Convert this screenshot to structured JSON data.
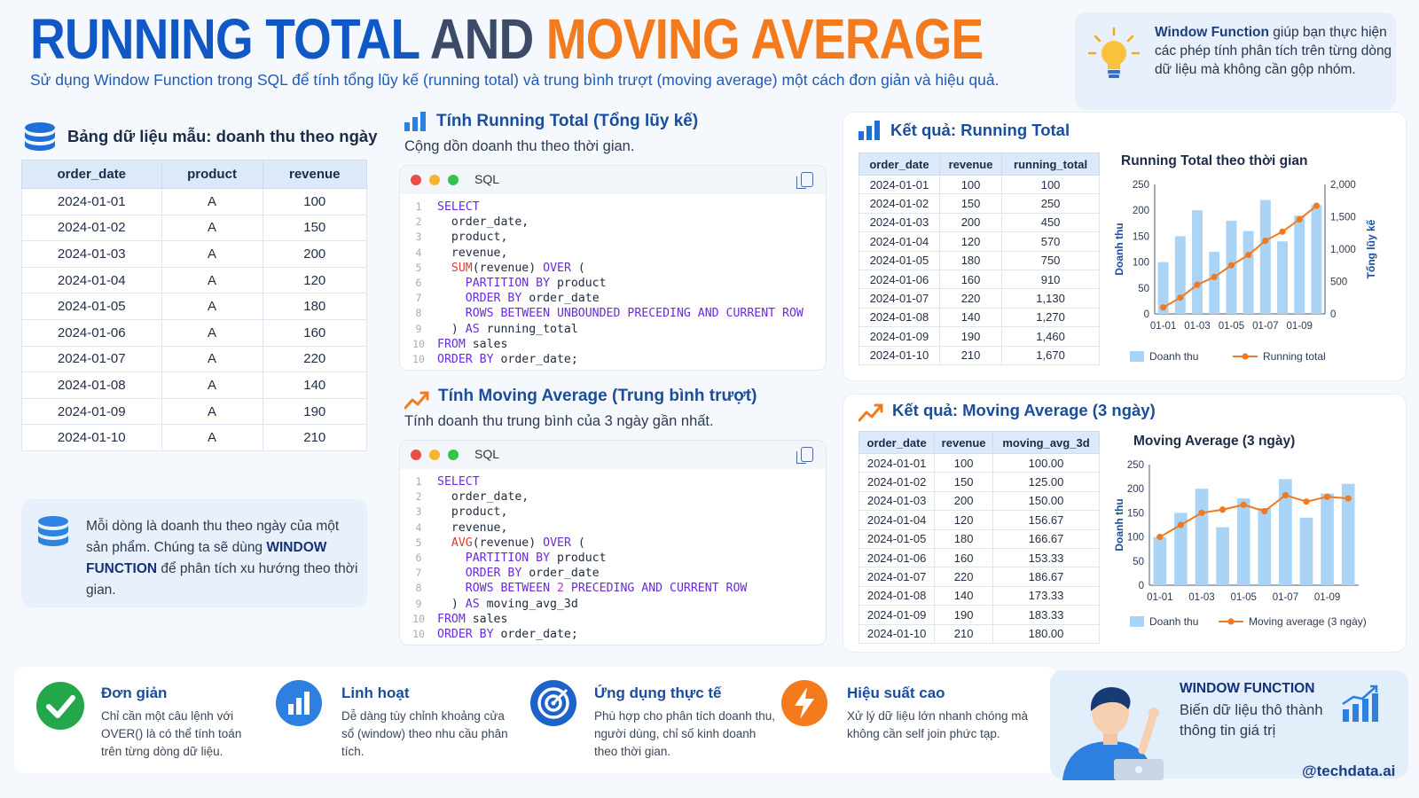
{
  "header": {
    "title_part1": "RUNNING TOTAL",
    "title_part2": "AND",
    "title_part3": "MOVING AVERAGE",
    "subtitle": "Sử dụng Window Function trong SQL để tính tổng lũy kế (running total) và trung bình trượt (moving average) một cách đơn giản và hiệu quả.",
    "tip_bold": "Window Function",
    "tip_rest": " giúp bạn thực hiện các phép tính phân tích trên từng dòng dữ liệu mà không cần gộp nhóm."
  },
  "sample": {
    "title": "Bảng dữ liệu mẫu: doanh thu theo ngày",
    "columns": [
      "order_date",
      "product",
      "revenue"
    ],
    "rows": [
      [
        "2024-01-01",
        "A",
        "100"
      ],
      [
        "2024-01-02",
        "A",
        "150"
      ],
      [
        "2024-01-03",
        "A",
        "200"
      ],
      [
        "2024-01-04",
        "A",
        "120"
      ],
      [
        "2024-01-05",
        "A",
        "180"
      ],
      [
        "2024-01-06",
        "A",
        "160"
      ],
      [
        "2024-01-07",
        "A",
        "220"
      ],
      [
        "2024-01-08",
        "A",
        "140"
      ],
      [
        "2024-01-09",
        "A",
        "190"
      ],
      [
        "2024-01-10",
        "A",
        "210"
      ]
    ],
    "note_part1": "Mỗi dòng là doanh thu theo ngày của một sản phẩm. Chúng ta sẽ dùng ",
    "note_bold": "WINDOW FUNCTION",
    "note_part2": " để phân tích xu hướng theo thời gian."
  },
  "running_sql": {
    "title": "Tính Running Total (Tổng lũy kế)",
    "subtitle": "Cộng dồn doanh thu theo thời gian.",
    "lang": "SQL",
    "lines": [
      {
        "n": "1",
        "parts": [
          {
            "c": "kw",
            "t": "SELECT"
          }
        ]
      },
      {
        "n": "2",
        "parts": [
          {
            "c": "txt",
            "t": "  order_date,"
          }
        ]
      },
      {
        "n": "3",
        "parts": [
          {
            "c": "txt",
            "t": "  product,"
          }
        ]
      },
      {
        "n": "4",
        "parts": [
          {
            "c": "txt",
            "t": "  revenue,"
          }
        ]
      },
      {
        "n": "5",
        "parts": [
          {
            "c": "txt",
            "t": "  "
          },
          {
            "c": "fn",
            "t": "SUM"
          },
          {
            "c": "txt",
            "t": "(revenue) "
          },
          {
            "c": "kw",
            "t": "OVER"
          },
          {
            "c": "txt",
            "t": " ("
          }
        ]
      },
      {
        "n": "6",
        "parts": [
          {
            "c": "txt",
            "t": "    "
          },
          {
            "c": "kw",
            "t": "PARTITION BY"
          },
          {
            "c": "txt",
            "t": " product"
          }
        ]
      },
      {
        "n": "7",
        "parts": [
          {
            "c": "txt",
            "t": "    "
          },
          {
            "c": "kw",
            "t": "ORDER BY"
          },
          {
            "c": "txt",
            "t": " order_date"
          }
        ]
      },
      {
        "n": "8",
        "parts": [
          {
            "c": "txt",
            "t": "    "
          },
          {
            "c": "kw",
            "t": "ROWS BETWEEN UNBOUNDED PRECEDING AND CURRENT ROW"
          }
        ]
      },
      {
        "n": "9",
        "parts": [
          {
            "c": "txt",
            "t": "  ) "
          },
          {
            "c": "kw",
            "t": "AS"
          },
          {
            "c": "txt",
            "t": " running_total"
          }
        ]
      },
      {
        "n": "10",
        "parts": [
          {
            "c": "kw",
            "t": "FROM"
          },
          {
            "c": "txt",
            "t": " sales"
          }
        ]
      },
      {
        "n": "10",
        "parts": [
          {
            "c": "kw",
            "t": "ORDER BY"
          },
          {
            "c": "txt",
            "t": " order_date;"
          }
        ]
      }
    ]
  },
  "moving_sql": {
    "title": "Tính Moving Average (Trung bình trượt)",
    "subtitle": "Tính doanh thu trung bình của 3 ngày gần nhất.",
    "lang": "SQL",
    "lines": [
      {
        "n": "1",
        "parts": [
          {
            "c": "kw",
            "t": "SELECT"
          }
        ]
      },
      {
        "n": "2",
        "parts": [
          {
            "c": "txt",
            "t": "  order_date,"
          }
        ]
      },
      {
        "n": "3",
        "parts": [
          {
            "c": "txt",
            "t": "  product,"
          }
        ]
      },
      {
        "n": "4",
        "parts": [
          {
            "c": "txt",
            "t": "  revenue,"
          }
        ]
      },
      {
        "n": "5",
        "parts": [
          {
            "c": "txt",
            "t": "  "
          },
          {
            "c": "fn",
            "t": "AVG"
          },
          {
            "c": "txt",
            "t": "(revenue) "
          },
          {
            "c": "kw",
            "t": "OVER"
          },
          {
            "c": "txt",
            "t": " ("
          }
        ]
      },
      {
        "n": "6",
        "parts": [
          {
            "c": "txt",
            "t": "    "
          },
          {
            "c": "kw",
            "t": "PARTITION BY"
          },
          {
            "c": "txt",
            "t": " product"
          }
        ]
      },
      {
        "n": "7",
        "parts": [
          {
            "c": "txt",
            "t": "    "
          },
          {
            "c": "kw",
            "t": "ORDER BY"
          },
          {
            "c": "txt",
            "t": " order_date"
          }
        ]
      },
      {
        "n": "8",
        "parts": [
          {
            "c": "txt",
            "t": "    "
          },
          {
            "c": "kw",
            "t": "ROWS BETWEEN "
          },
          {
            "c": "num",
            "t": "2"
          },
          {
            "c": "kw",
            "t": " PRECEDING AND CURRENT ROW"
          }
        ]
      },
      {
        "n": "9",
        "parts": [
          {
            "c": "txt",
            "t": "  ) "
          },
          {
            "c": "kw",
            "t": "AS"
          },
          {
            "c": "txt",
            "t": " moving_avg_3d"
          }
        ]
      },
      {
        "n": "10",
        "parts": [
          {
            "c": "kw",
            "t": "FROM"
          },
          {
            "c": "txt",
            "t": " sales"
          }
        ]
      },
      {
        "n": "10",
        "parts": [
          {
            "c": "kw",
            "t": "ORDER BY"
          },
          {
            "c": "txt",
            "t": " order_date;"
          }
        ]
      }
    ]
  },
  "running_result": {
    "title": "Kết quả: Running Total",
    "columns": [
      "order_date",
      "revenue",
      "running_total"
    ],
    "rows": [
      [
        "2024-01-01",
        "100",
        "100"
      ],
      [
        "2024-01-02",
        "150",
        "250"
      ],
      [
        "2024-01-03",
        "200",
        "450"
      ],
      [
        "2024-01-04",
        "120",
        "570"
      ],
      [
        "2024-01-05",
        "180",
        "750"
      ],
      [
        "2024-01-06",
        "160",
        "910"
      ],
      [
        "2024-01-07",
        "220",
        "1,130"
      ],
      [
        "2024-01-08",
        "140",
        "1,270"
      ],
      [
        "2024-01-09",
        "190",
        "1,460"
      ],
      [
        "2024-01-10",
        "210",
        "1,670"
      ]
    ]
  },
  "moving_result": {
    "title": "Kết quả: Moving Average (3 ngày)",
    "columns": [
      "order_date",
      "revenue",
      "moving_avg_3d"
    ],
    "rows": [
      [
        "2024-01-01",
        "100",
        "100.00"
      ],
      [
        "2024-01-02",
        "150",
        "125.00"
      ],
      [
        "2024-01-03",
        "200",
        "150.00"
      ],
      [
        "2024-01-04",
        "120",
        "156.67"
      ],
      [
        "2024-01-05",
        "180",
        "166.67"
      ],
      [
        "2024-01-06",
        "160",
        "153.33"
      ],
      [
        "2024-01-07",
        "220",
        "186.67"
      ],
      [
        "2024-01-08",
        "140",
        "173.33"
      ],
      [
        "2024-01-09",
        "190",
        "183.33"
      ],
      [
        "2024-01-10",
        "210",
        "180.00"
      ]
    ]
  },
  "chart_data": [
    {
      "type": "bar",
      "title": "Running Total theo thời gian",
      "xlabel": "",
      "ylabel": "Doanh thu",
      "y2label": "Tổng lũy kế",
      "categories": [
        "01-01",
        "01-02",
        "01-03",
        "01-04",
        "01-05",
        "01-06",
        "01-07",
        "01-08",
        "01-09",
        "01-10"
      ],
      "x_tick_labels": [
        "01-01",
        "01-03",
        "01-05",
        "01-07",
        "01-09"
      ],
      "ylim": [
        0,
        250
      ],
      "y_ticks": [
        "0",
        "50",
        "100",
        "150",
        "200",
        "250"
      ],
      "y2lim": [
        0,
        2000
      ],
      "y2_ticks": [
        "0",
        "500",
        "1,000",
        "1,500",
        "2,000"
      ],
      "series": [
        {
          "name": "Doanh thu",
          "kind": "bar",
          "axis": "left",
          "color": "#a9d4f5",
          "values": [
            100,
            150,
            200,
            120,
            180,
            160,
            220,
            140,
            190,
            210
          ]
        },
        {
          "name": "Running total",
          "kind": "line",
          "axis": "right",
          "color": "#f07a22",
          "values": [
            100,
            250,
            450,
            570,
            750,
            910,
            1130,
            1270,
            1460,
            1670
          ]
        }
      ],
      "legend": "bottom"
    },
    {
      "type": "bar",
      "title": "Moving Average (3 ngày)",
      "xlabel": "",
      "ylabel": "Doanh thu",
      "categories": [
        "01-01",
        "01-02",
        "01-03",
        "01-04",
        "01-05",
        "01-06",
        "01-07",
        "01-08",
        "01-09",
        "01-10"
      ],
      "x_tick_labels": [
        "01-01",
        "01-03",
        "01-05",
        "01-07",
        "01-09"
      ],
      "ylim": [
        0,
        250
      ],
      "y_ticks": [
        "0",
        "50",
        "100",
        "150",
        "200",
        "250"
      ],
      "series": [
        {
          "name": "Doanh thu",
          "kind": "bar",
          "axis": "left",
          "color": "#a9d4f5",
          "values": [
            100,
            150,
            200,
            120,
            180,
            160,
            220,
            140,
            190,
            210
          ]
        },
        {
          "name": "Moving average (3 ngày)",
          "kind": "line",
          "axis": "left",
          "color": "#f07a22",
          "values": [
            100,
            125,
            150,
            156.67,
            166.67,
            153.33,
            186.67,
            173.33,
            183.33,
            180
          ]
        }
      ],
      "legend": "bottom"
    }
  ],
  "features": [
    {
      "title": "Đơn giản",
      "desc": "Chỉ cần một câu lệnh với OVER() là có thể tính toán trên từng dòng dữ liệu.",
      "icon": "check-icon",
      "color": "#22a84a"
    },
    {
      "title": "Linh hoạt",
      "desc": "Dễ dàng tùy chỉnh khoảng cửa sổ (window) theo nhu cầu phân tích.",
      "icon": "bar-chart-icon",
      "color": "#2d7fe0"
    },
    {
      "title": "Ứng dụng thực tế",
      "desc": "Phù hợp cho phân tích doanh thu, người dùng, chỉ số kinh doanh theo thời gian.",
      "icon": "target-icon",
      "color": "#1e63c9"
    },
    {
      "title": "Hiệu suất cao",
      "desc": "Xử lý dữ liệu lớn nhanh chóng mà không cần self join phức tạp.",
      "icon": "lightning-icon",
      "color": "#f47a1e"
    }
  ],
  "promo": {
    "title": "WINDOW FUNCTION",
    "subtitle": "Biến dữ liệu thô thành thông tin giá trị",
    "handle": "@techdata.ai"
  },
  "colors": {
    "primary": "#1158c7",
    "accent": "#f47a1e",
    "bar": "#a9d4f5"
  }
}
